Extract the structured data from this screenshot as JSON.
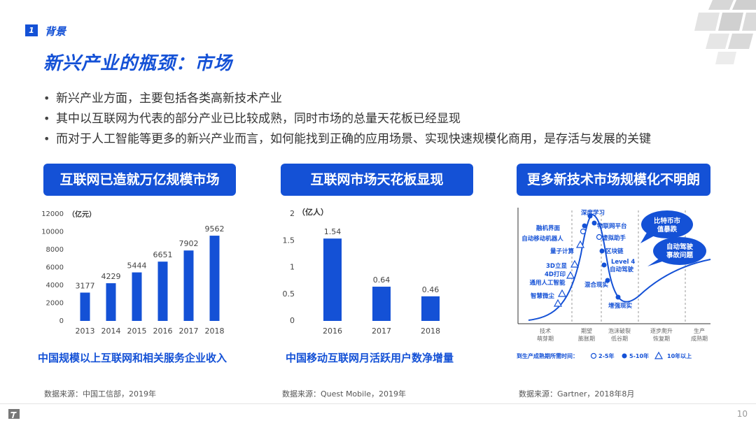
{
  "section": {
    "number": "1",
    "title": "背景"
  },
  "page_title": "新兴产业的瓶颈：市场",
  "bullets": [
    "新兴产业方面，主要包括各类高新技术产业",
    "其中以互联网为代表的部分产业已比较成熟，同时市场的总量天花板已经显现",
    "而对于人工智能等更多的新兴产业而言，如何能找到正确的应用场景、实现快速规模化商用，是存活与发展的关键"
  ],
  "panels": [
    {
      "pill": "互联网已造就万亿规模市场",
      "caption": "中国规模以上互联网和相关服务企业收入",
      "source": "数据来源：中国工信部，2019年"
    },
    {
      "pill": "互联网市场天花板显现",
      "caption": "中国移动互联网月活跃用户数净增量",
      "source": "数据来源：Quest Mobile，2019年"
    },
    {
      "pill": "更多新技术市场规模化不明朗",
      "source": "数据来源：Gartner，2018年8月"
    }
  ],
  "chart_data": [
    {
      "type": "bar",
      "unit_label": "（亿元）",
      "categories": [
        "2013",
        "2014",
        "2015",
        "2016",
        "2017",
        "2018"
      ],
      "values": [
        3177,
        4229,
        5444,
        6651,
        7902,
        9562
      ],
      "yticks": [
        "0",
        "2000",
        "4000",
        "6000",
        "8000",
        "10000",
        "12000"
      ],
      "ylim": [
        0,
        12000
      ],
      "color": "#1451d6"
    },
    {
      "type": "bar",
      "unit_label": "（亿人）",
      "categories": [
        "2016",
        "2017",
        "2018"
      ],
      "values": [
        1.54,
        0.64,
        0.46
      ],
      "value_labels": [
        "1.54",
        "0.64",
        "0.46"
      ],
      "yticks": [
        "0",
        "0.5",
        "1",
        "1.5",
        "2"
      ],
      "ylim": [
        0,
        2
      ],
      "color": "#1451d6"
    }
  ],
  "hype": {
    "phases": [
      "技术\n萌芽期",
      "期望\n膨胀期",
      "泡沫破裂\n低谷期",
      "逐步爬升\n恢复期",
      "生产\n成熟期"
    ],
    "left_items": [
      "融机界面",
      "自动移动机器人",
      "量子计算",
      "3D立显",
      "4D打印",
      "通用人工智能",
      "智慧微尘"
    ],
    "top_item": "深度学习",
    "right_items": [
      "物联网平台",
      "虚拟助手",
      "区块链",
      "Level 4",
      "自动驾驶",
      "混合现实",
      "增强现实"
    ],
    "bubble1": [
      "比特币市",
      "值暴跌"
    ],
    "bubble2": [
      "自动驾驶",
      "事故问题"
    ],
    "legend": {
      "label": "到生产成熟期所需时间：",
      "items": [
        "2-5年",
        "5-10年",
        "10年以上"
      ]
    }
  }
}
